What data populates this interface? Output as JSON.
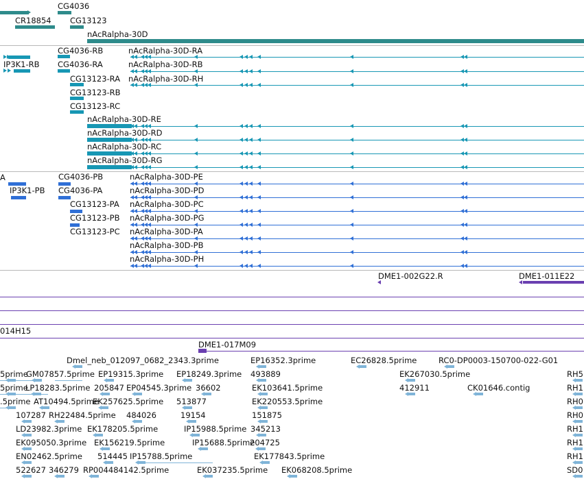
{
  "tracks": {
    "genes": {
      "color": "#2e8b8b",
      "labels": [
        "CG4036",
        "CR18854",
        "CG13123",
        "nAcRalpha-30D"
      ]
    },
    "transcripts": {
      "color": "#1797b4",
      "labels": [
        "CG4036-RB",
        "IP3K1-RB",
        "CG4036-RA",
        "nAcRalpha-30D-RA",
        "nAcRalpha-30D-RB",
        "nAcRalpha-30D-RH",
        "CG13123-RA",
        "CG13123-RB",
        "CG13123-RC",
        "nAcRalpha-30D-RE",
        "nAcRalpha-30D-RD",
        "nAcRalpha-30D-RC",
        "nAcRalpha-30D-RG"
      ]
    },
    "proteins": {
      "color": "#2f6fd6",
      "labels": [
        "A",
        "CG4036-PB",
        "IP3K1-PB",
        "CG4036-PA",
        "CG13123-PA",
        "CG13123-PB",
        "CG13123-PC",
        "nAcRalpha-30D-PE",
        "nAcRalpha-30D-PD",
        "nAcRalpha-30D-PC",
        "nAcRalpha-30D-PG",
        "nAcRalpha-30D-PA",
        "nAcRalpha-30D-PB",
        "nAcRalpha-30D-PH"
      ]
    },
    "clones": {
      "color": "#6a3fb0",
      "labels": [
        "DME1-002G22.R",
        "DME1-011E22",
        "014H15",
        "DME1-017M09"
      ]
    },
    "ests": {
      "color": "#7fb4d8",
      "labels": [
        "Dmel_neb_012097_0682_2343.3prime",
        "EP16352.3prime",
        "EC26828.5prime",
        "RC0-DP0003-150700-022-G01",
        "5prime",
        "GM07857.5prime",
        "EP19315.3prime",
        "EP18249.3prime",
        "493889",
        "EK267030.5prime",
        "RH5",
        "5prime",
        "LP18283.5prime",
        "205847",
        "EP04545.3prime",
        "36602",
        "EK103641.5prime",
        "412911",
        "CK01646.contig",
        "RH1",
        ".5prime",
        "AT10494.5prime",
        "EK257625.5prime",
        "513877",
        "EK220553.5prime",
        "RH0",
        "107287",
        "RH22484.5prime",
        "484026",
        "19154",
        "151875",
        "RH0",
        "LD23982.3prime",
        "EK178205.5prime",
        "IP15988.5prime",
        "345213",
        "RH1",
        "EK095050.3prime",
        "EK156219.5prime",
        "IP15688.5prime",
        "204725",
        "RH1",
        "EN02462.5prime",
        "514445",
        "IP15788.5prime",
        "EK177843.5prime",
        "RH1",
        "522627",
        "346279",
        "RP004484142.5prime",
        "EK037235.5prime",
        "EK068208.5prime",
        "SD0"
      ]
    }
  }
}
